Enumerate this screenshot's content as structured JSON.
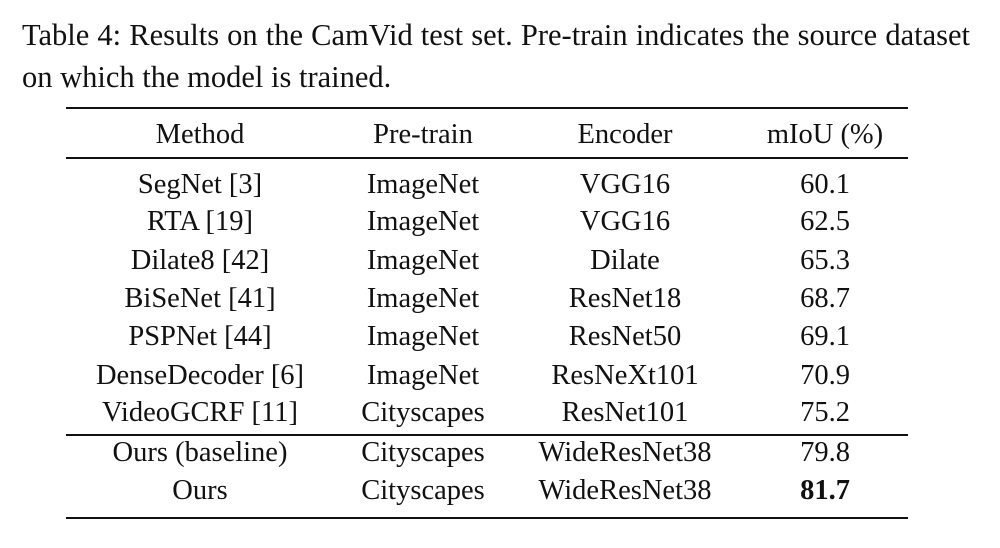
{
  "caption": "Table 4: Results on the CamVid test set.  Pre-train indicates the source dataset on which the model is trained.",
  "table": {
    "header": [
      "Method",
      "Pre-train",
      "Encoder",
      "mIoU (%)"
    ],
    "rows": [
      [
        "SegNet [3]",
        "ImageNet",
        "VGG16",
        "60.1"
      ],
      [
        "RTA [19]",
        "ImageNet",
        "VGG16",
        "62.5"
      ],
      [
        "Dilate8 [42]",
        "ImageNet",
        "Dilate",
        "65.3"
      ],
      [
        "BiSeNet [41]",
        "ImageNet",
        "ResNet18",
        "68.7"
      ],
      [
        "PSPNet [44]",
        "ImageNet",
        "ResNet50",
        "69.1"
      ],
      [
        "DenseDecoder [6]",
        "ImageNet",
        "ResNeXt101",
        "70.9"
      ],
      [
        "VideoGCRF [11]",
        "Cityscapes",
        "ResNet101",
        "75.2"
      ],
      [
        "Ours (baseline)",
        "Cityscapes",
        "WideResNet38",
        "79.8"
      ],
      [
        "Ours",
        "Cityscapes",
        "WideResNet38",
        "81.7"
      ]
    ]
  }
}
